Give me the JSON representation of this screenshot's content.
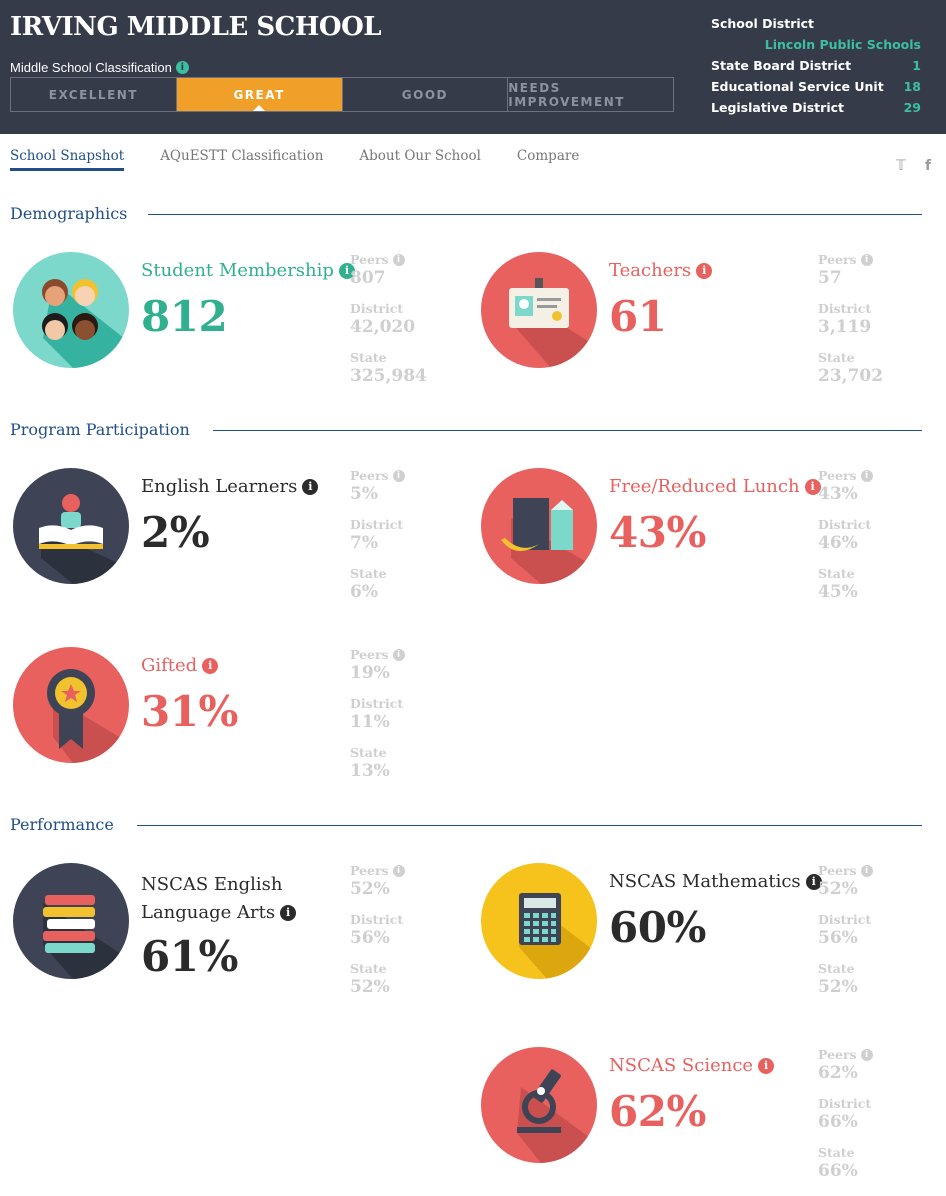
{
  "header": {
    "school_name": "IRVING MIDDLE SCHOOL",
    "classification_label": "Middle School Classification",
    "classifications": [
      {
        "label": "EXCELLENT",
        "active": false
      },
      {
        "label": "GREAT",
        "active": true
      },
      {
        "label": "GOOD",
        "active": false
      },
      {
        "label": "NEEDS IMPROVEMENT",
        "active": false
      }
    ],
    "district": {
      "school_district_label": "School District",
      "school_district_value": "Lincoln Public Schools",
      "state_board_label": "State Board District",
      "state_board_value": "1",
      "esu_label": "Educational Service Unit",
      "esu_value": "18",
      "legislative_label": "Legislative District",
      "legislative_value": "29"
    }
  },
  "nav": {
    "tabs": [
      "School Snapshot",
      "AQuESTT Classification",
      "About Our School",
      "Compare"
    ],
    "twitter_icon": "twitter-icon",
    "facebook_icon": "facebook-icon"
  },
  "sections": {
    "demographics": "Demographics",
    "program": "Program Participation",
    "performance": "Performance"
  },
  "labels": {
    "peers": "Peers",
    "district": "District",
    "state": "State"
  },
  "stats": {
    "membership": {
      "label": "Student Membership",
      "value": "812",
      "peers": "807",
      "district": "42,020",
      "state": "325,984",
      "icon": "students-icon"
    },
    "teachers": {
      "label": "Teachers",
      "value": "61",
      "peers": "57",
      "district": "3,119",
      "state": "23,702",
      "icon": "id-badge-icon"
    },
    "english_learners": {
      "label": "English Learners",
      "value": "2%",
      "peers": "5%",
      "district": "7%",
      "state": "6%",
      "icon": "reader-icon"
    },
    "lunch": {
      "label": "Free/Reduced Lunch",
      "value": "43%",
      "peers": "43%",
      "district": "46%",
      "state": "45%",
      "icon": "lunch-icon"
    },
    "gifted": {
      "label": "Gifted",
      "value": "31%",
      "peers": "19%",
      "district": "11%",
      "state": "13%",
      "icon": "award-ribbon-icon"
    },
    "ela": {
      "label_line1": "NSCAS English",
      "label_line2": "Language Arts",
      "value": "61%",
      "peers": "52%",
      "district": "56%",
      "state": "52%",
      "icon": "books-icon"
    },
    "math": {
      "label": "NSCAS Mathematics",
      "value": "60%",
      "peers": "52%",
      "district": "56%",
      "state": "52%",
      "icon": "calculator-icon"
    },
    "science": {
      "label": "NSCAS Science",
      "value": "62%",
      "peers": "62%",
      "district": "66%",
      "state": "66%",
      "icon": "microscope-icon"
    }
  },
  "colors": {
    "header_bg": "#363b4a",
    "accent_orange": "#f0a029",
    "teal": "#30b08f",
    "red": "#e8615f",
    "navy": "#1f4f86",
    "yellow": "#f6c21c"
  }
}
